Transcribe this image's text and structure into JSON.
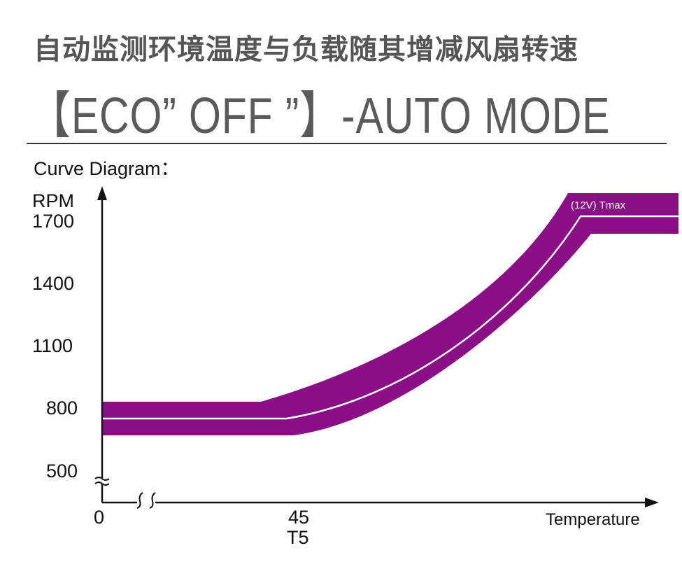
{
  "title_cn": "自动监测环境温度与负载随其增减风扇转速",
  "title_en": "【ECO” OFF ”】-AUTO MODE",
  "chart_data": {
    "type": "area",
    "title": "Curve Diagram：",
    "ylabel": "RPM",
    "xlabel": "Temperature",
    "y_ticks": [
      "1700",
      "1400",
      "1100",
      "800",
      "500"
    ],
    "x_ticks": [
      "0",
      "45"
    ],
    "x_tick_sub": "T5",
    "annotation": "(12V)  Tmax",
    "colors": {
      "band": "#8a0f87",
      "center": "#ffffff"
    }
  }
}
